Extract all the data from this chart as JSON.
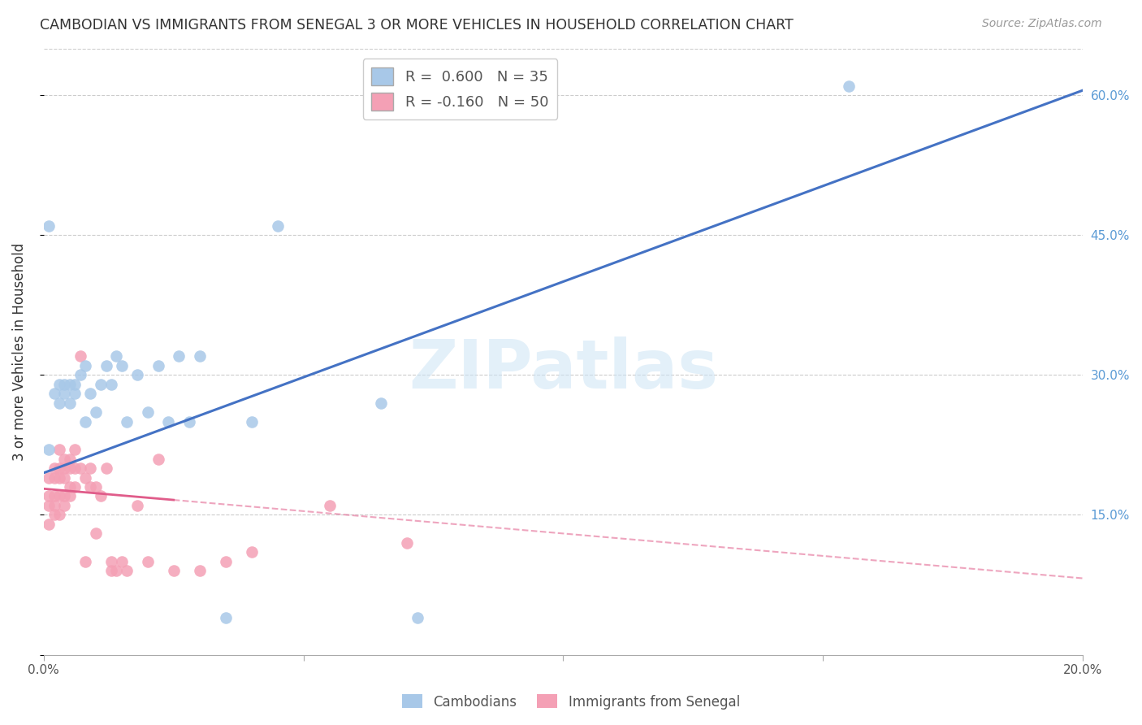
{
  "title": "CAMBODIAN VS IMMIGRANTS FROM SENEGAL 3 OR MORE VEHICLES IN HOUSEHOLD CORRELATION CHART",
  "source": "Source: ZipAtlas.com",
  "ylabel": "3 or more Vehicles in Household",
  "xlim": [
    0.0,
    0.2
  ],
  "ylim": [
    0.0,
    0.65
  ],
  "x_ticks": [
    0.0,
    0.05,
    0.1,
    0.15,
    0.2
  ],
  "x_tick_labels": [
    "0.0%",
    "",
    "",
    "",
    "20.0%"
  ],
  "y_ticks_right": [
    0.0,
    0.15,
    0.3,
    0.45,
    0.6
  ],
  "y_tick_labels_right": [
    "",
    "15.0%",
    "30.0%",
    "45.0%",
    "60.0%"
  ],
  "cambodian_R": 0.6,
  "cambodian_N": 35,
  "senegal_R": -0.16,
  "senegal_N": 50,
  "blue_color": "#a8c8e8",
  "pink_color": "#f4a0b5",
  "blue_line_color": "#4472c4",
  "pink_line_color": "#e05c8a",
  "watermark": "ZIPatlas",
  "blue_intercept": 0.195,
  "blue_slope": 2.05,
  "pink_intercept": 0.178,
  "pink_slope": -0.48,
  "cambodian_x": [
    0.001,
    0.001,
    0.002,
    0.003,
    0.003,
    0.004,
    0.004,
    0.005,
    0.005,
    0.006,
    0.006,
    0.007,
    0.008,
    0.008,
    0.009,
    0.01,
    0.011,
    0.012,
    0.013,
    0.014,
    0.015,
    0.016,
    0.018,
    0.02,
    0.022,
    0.024,
    0.026,
    0.028,
    0.03,
    0.035,
    0.04,
    0.045,
    0.065,
    0.072,
    0.155
  ],
  "cambodian_y": [
    0.22,
    0.46,
    0.28,
    0.29,
    0.27,
    0.29,
    0.28,
    0.27,
    0.29,
    0.29,
    0.28,
    0.3,
    0.25,
    0.31,
    0.28,
    0.26,
    0.29,
    0.31,
    0.29,
    0.32,
    0.31,
    0.25,
    0.3,
    0.26,
    0.31,
    0.25,
    0.32,
    0.25,
    0.32,
    0.04,
    0.25,
    0.46,
    0.27,
    0.04,
    0.61
  ],
  "senegal_x": [
    0.001,
    0.001,
    0.001,
    0.001,
    0.002,
    0.002,
    0.002,
    0.002,
    0.002,
    0.003,
    0.003,
    0.003,
    0.003,
    0.003,
    0.004,
    0.004,
    0.004,
    0.004,
    0.004,
    0.005,
    0.005,
    0.005,
    0.005,
    0.006,
    0.006,
    0.006,
    0.007,
    0.007,
    0.008,
    0.008,
    0.009,
    0.009,
    0.01,
    0.01,
    0.011,
    0.012,
    0.013,
    0.013,
    0.014,
    0.015,
    0.016,
    0.018,
    0.02,
    0.022,
    0.025,
    0.03,
    0.035,
    0.04,
    0.055,
    0.07
  ],
  "senegal_y": [
    0.19,
    0.17,
    0.16,
    0.14,
    0.2,
    0.19,
    0.17,
    0.16,
    0.15,
    0.22,
    0.2,
    0.19,
    0.17,
    0.15,
    0.21,
    0.2,
    0.19,
    0.17,
    0.16,
    0.21,
    0.2,
    0.18,
    0.17,
    0.22,
    0.2,
    0.18,
    0.32,
    0.2,
    0.19,
    0.1,
    0.2,
    0.18,
    0.18,
    0.13,
    0.17,
    0.2,
    0.1,
    0.09,
    0.09,
    0.1,
    0.09,
    0.16,
    0.1,
    0.21,
    0.09,
    0.09,
    0.1,
    0.11,
    0.16,
    0.12
  ]
}
